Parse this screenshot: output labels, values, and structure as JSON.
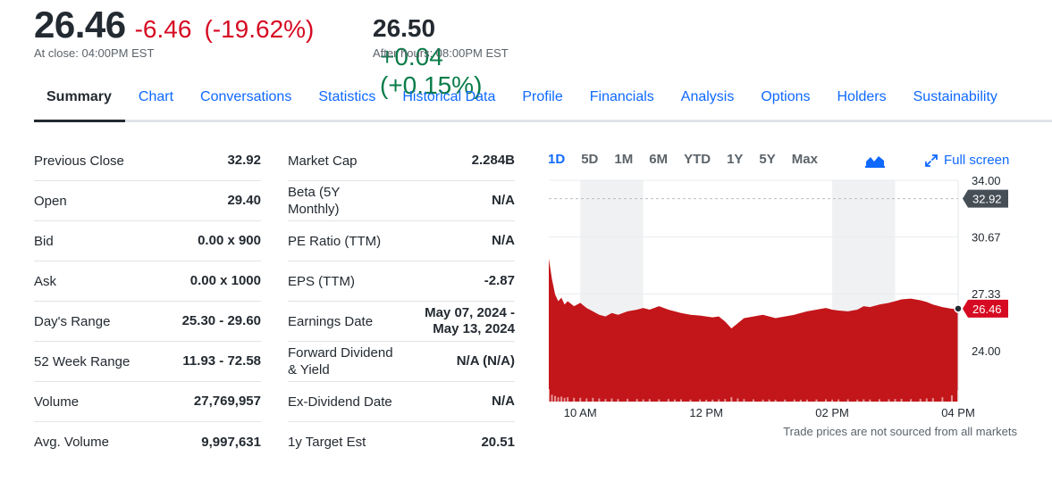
{
  "quote": {
    "price": "26.46",
    "change": "-6.46",
    "change_pct": "(-19.62%)",
    "close_label": "At close: 04:00PM EST",
    "after_hours_price": "26.50",
    "after_hours_change": "+0.04",
    "after_hours_change_pct": "(+0.15%)",
    "after_hours_label": "After hours: 08:00PM EST"
  },
  "tabs": [
    "Summary",
    "Chart",
    "Conversations",
    "Statistics",
    "Historical Data",
    "Profile",
    "Financials",
    "Analysis",
    "Options",
    "Holders",
    "Sustainability"
  ],
  "active_tab": "Summary",
  "stats_left": [
    {
      "label": "Previous Close",
      "value": "32.92"
    },
    {
      "label": "Open",
      "value": "29.40"
    },
    {
      "label": "Bid",
      "value": "0.00 x 900"
    },
    {
      "label": "Ask",
      "value": "0.00 x 1000"
    },
    {
      "label": "Day's Range",
      "value": "25.30 - 29.60"
    },
    {
      "label": "52 Week Range",
      "value": "11.93 - 72.58"
    },
    {
      "label": "Volume",
      "value": "27,769,957"
    },
    {
      "label": "Avg. Volume",
      "value": "9,997,631"
    }
  ],
  "stats_right": [
    {
      "label": "Market Cap",
      "value": "2.284B"
    },
    {
      "label": "Beta (5Y Monthly)",
      "value": "N/A"
    },
    {
      "label": "PE Ratio (TTM)",
      "value": "N/A"
    },
    {
      "label": "EPS (TTM)",
      "value": "-2.87"
    },
    {
      "label": "Earnings Date",
      "value": "May 07, 2024 - May 13, 2024"
    },
    {
      "label": "Forward Dividend & Yield",
      "value": "N/A (N/A)"
    },
    {
      "label": "Ex-Dividend Date",
      "value": "N/A"
    },
    {
      "label": "1y Target Est",
      "value": "20.51"
    }
  ],
  "chart_controls": {
    "ranges": [
      "1D",
      "5D",
      "1M",
      "6M",
      "YTD",
      "1Y",
      "5Y",
      "Max"
    ],
    "active_range": "1D",
    "chart_type_icon": "mountain-chart-icon",
    "fullscreen_label": "Full screen",
    "fullscreen_icon": "expand-icon"
  },
  "chart_note": "Trade prices are not sourced from all markets",
  "chart_data": {
    "type": "area",
    "x_ticks": [
      "10 AM",
      "12 PM",
      "02 PM",
      "04 PM"
    ],
    "y_ticks": [
      "34.00",
      "30.67",
      "27.33",
      "24.00"
    ],
    "ylim": [
      21.0,
      34.0
    ],
    "previous_close": {
      "value": 32.92,
      "label": "32.92"
    },
    "last_price": {
      "value": 26.46,
      "label": "26.46"
    },
    "x_hours": [
      9.5,
      9.55,
      9.6,
      9.65,
      9.7,
      9.75,
      9.8,
      9.9,
      10.0,
      10.1,
      10.2,
      10.3,
      10.4,
      10.5,
      10.6,
      10.75,
      10.9,
      11.0,
      11.1,
      11.25,
      11.4,
      11.5,
      11.6,
      11.75,
      11.9,
      12.0,
      12.1,
      12.2,
      12.3,
      12.4,
      12.5,
      12.6,
      12.75,
      12.9,
      13.0,
      13.1,
      13.25,
      13.4,
      13.5,
      13.6,
      13.75,
      13.9,
      14.0,
      14.1,
      14.25,
      14.4,
      14.5,
      14.6,
      14.75,
      14.9,
      15.0,
      15.1,
      15.25,
      15.4,
      15.5,
      15.6,
      15.75,
      15.9,
      16.0
    ],
    "values": [
      29.4,
      28.2,
      27.3,
      26.9,
      27.1,
      26.7,
      26.9,
      26.6,
      26.8,
      26.5,
      26.3,
      26.1,
      26.0,
      26.2,
      26.1,
      26.3,
      26.4,
      26.5,
      26.4,
      26.6,
      26.4,
      26.3,
      26.2,
      26.1,
      26.05,
      26.0,
      25.95,
      26.0,
      25.7,
      25.3,
      25.6,
      25.9,
      26.0,
      26.1,
      26.0,
      25.9,
      26.0,
      26.1,
      26.2,
      26.3,
      26.4,
      26.5,
      26.4,
      26.35,
      26.3,
      26.4,
      26.6,
      26.55,
      26.7,
      26.8,
      26.9,
      27.0,
      27.05,
      26.95,
      26.85,
      26.7,
      26.55,
      26.45,
      26.46
    ],
    "volume_relative": [
      1.0,
      0.55,
      0.45,
      0.35,
      0.4,
      0.3,
      0.35,
      0.3,
      0.3,
      0.25,
      0.3,
      0.25,
      0.2,
      0.25,
      0.2,
      0.22,
      0.2,
      0.18,
      0.2,
      0.18,
      0.2,
      0.17,
      0.18,
      0.16,
      0.17,
      0.15,
      0.16,
      0.18,
      0.2,
      0.35,
      0.25,
      0.2,
      0.18,
      0.16,
      0.17,
      0.15,
      0.16,
      0.17,
      0.15,
      0.16,
      0.17,
      0.18,
      0.16,
      0.17,
      0.18,
      0.16,
      0.18,
      0.17,
      0.19,
      0.18,
      0.2,
      0.22,
      0.2,
      0.22,
      0.25,
      0.28,
      0.35,
      0.5,
      0.9
    ],
    "colors": {
      "area": "#c3161a",
      "up_text": "#0a7c4a",
      "down_text": "#d60a22",
      "accent": "#0f69ff",
      "prev_close_badge": "#464e56"
    }
  }
}
